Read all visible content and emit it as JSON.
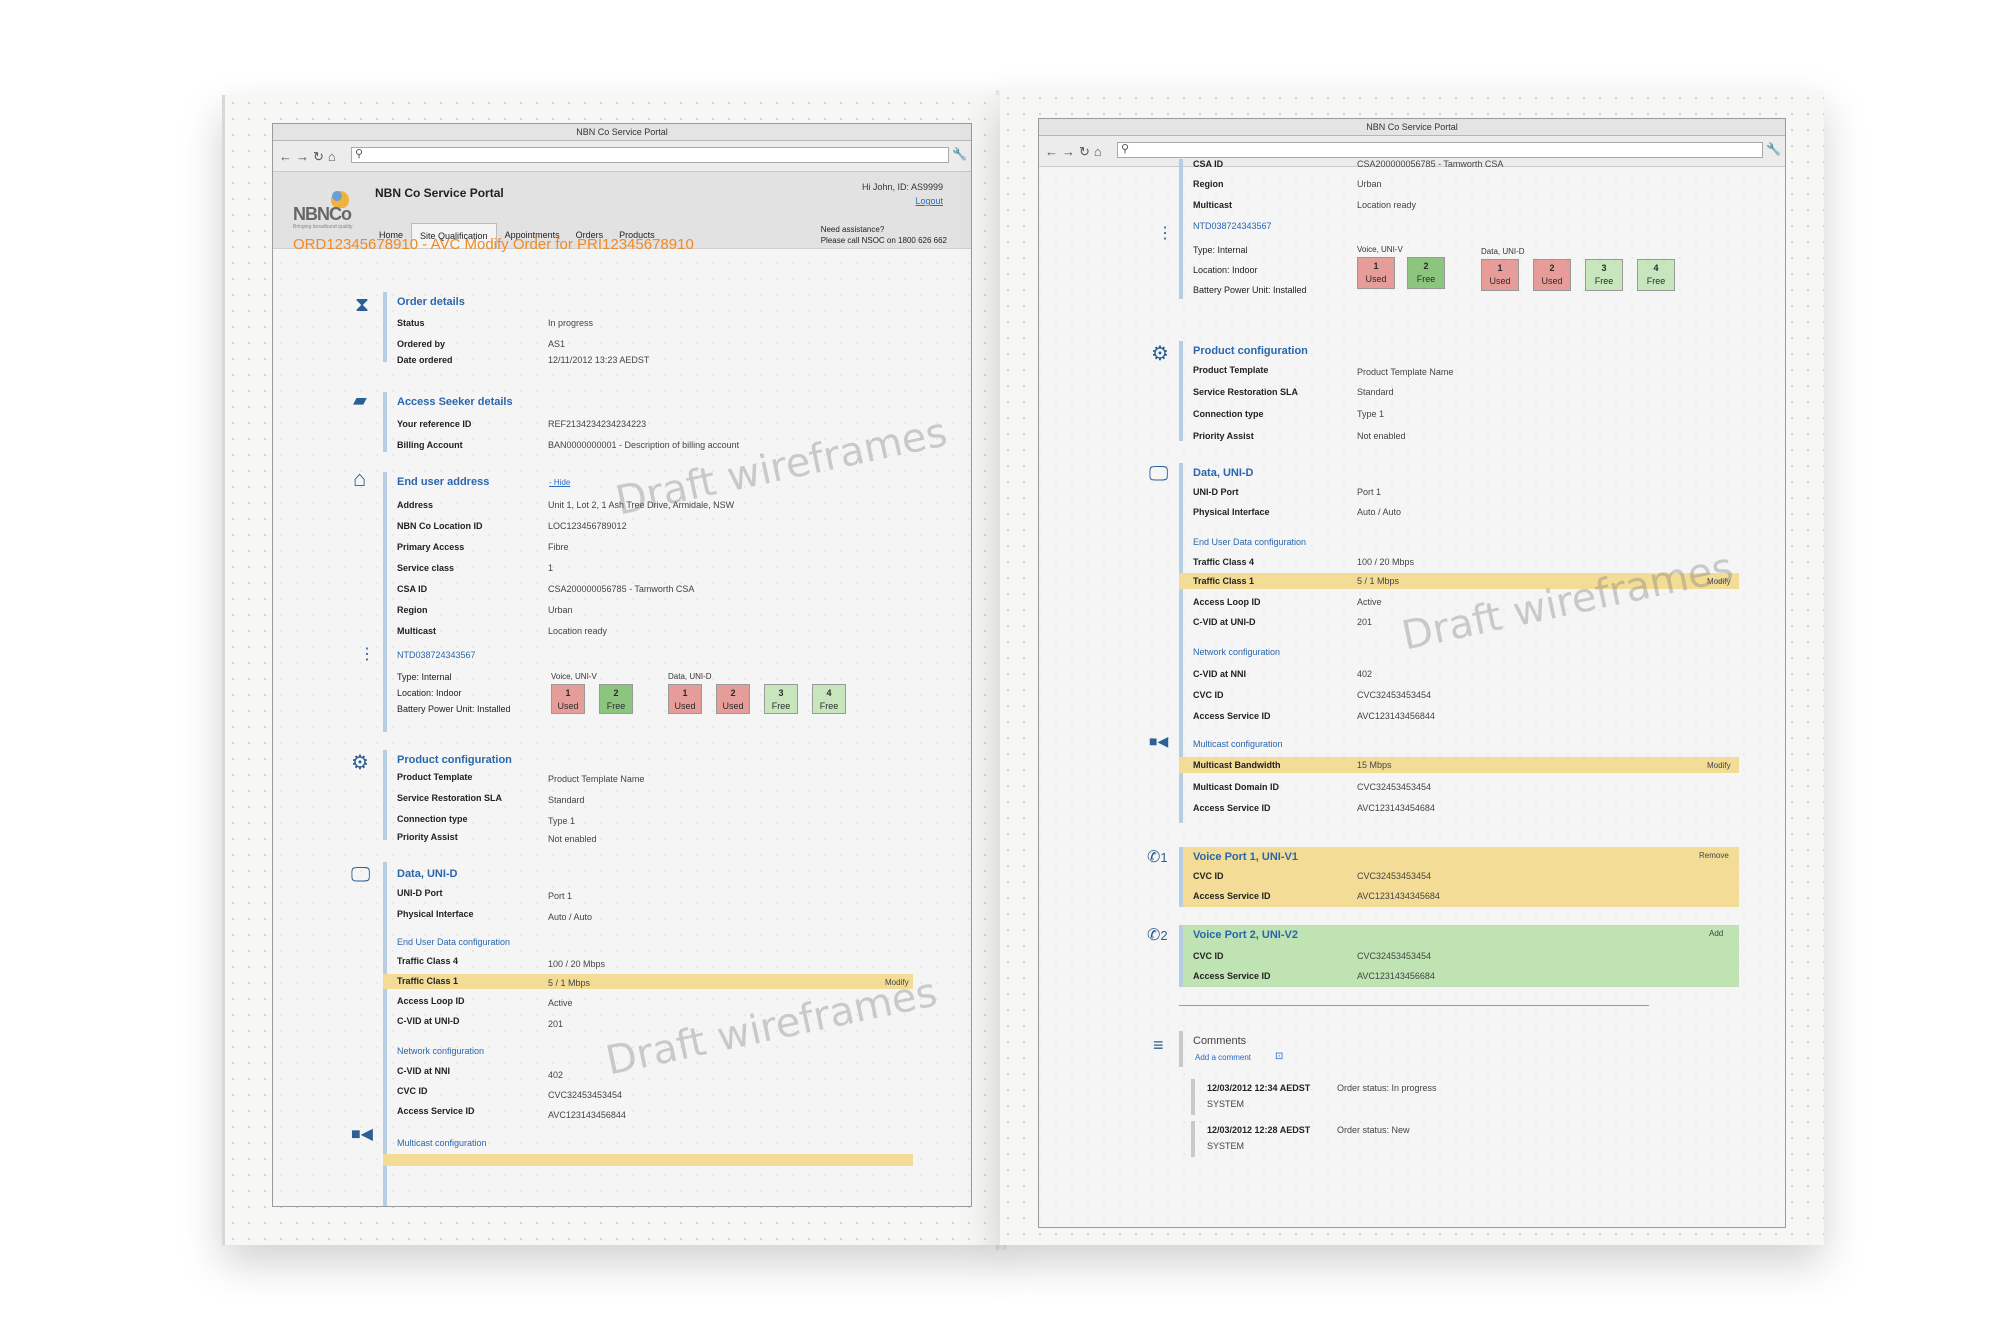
{
  "browser": {
    "window_title": "NBN Co Service Portal"
  },
  "app": {
    "logo_text": "NBNCo",
    "logo_tagline": "Bringing broadband quality",
    "portal_title": "NBN Co Service Portal",
    "user_greeting": "Hi John,  ID: AS9999",
    "logout": "Logout",
    "tabs": [
      "Home",
      "Site Qualification",
      "Appointments",
      "Orders",
      "Products"
    ]
  },
  "order": {
    "title": "ORD12345678910 - AVC Modify Order for PRI12345678910",
    "assist_line1": "Need assistance?",
    "assist_line2": "Please call NSOC on 1800 626 662"
  },
  "order_details": {
    "title": "Order details",
    "rows": [
      [
        "Status",
        "In progress"
      ],
      [
        "Ordered by",
        "AS1"
      ],
      [
        "Date ordered",
        "12/11/2012 13:23 AEDST"
      ]
    ]
  },
  "access_seeker": {
    "title": "Access Seeker details",
    "rows": [
      [
        "Your reference ID",
        "REF2134234234234223"
      ],
      [
        "Billing Account",
        "BAN0000000001 - Description of billing account"
      ]
    ]
  },
  "end_user_address": {
    "title": "End user address",
    "hide": "- Hide",
    "rows": [
      [
        "Address",
        "Unit 1, Lot 2, 1 Ash Tree Drive, Armidale, NSW"
      ],
      [
        "NBN Co Location ID",
        "LOC123456789012"
      ],
      [
        "Primary Access",
        "Fibre"
      ],
      [
        "Service class",
        "1"
      ],
      [
        "CSA ID",
        "CSA200000056785 - Tamworth CSA"
      ],
      [
        "Region",
        "Urban"
      ],
      [
        "Multicast",
        "Location ready"
      ]
    ]
  },
  "ntd": {
    "id": "NTD038724343567",
    "rows": [
      [
        "Type: Internal"
      ],
      [
        "Location: Indoor"
      ],
      [
        "Battery Power Unit: Installed"
      ]
    ],
    "voice_label": "Voice, UNI-V",
    "data_label": "Data, UNI-D",
    "voice_ports": [
      {
        "n": "1",
        "s": "Used"
      },
      {
        "n": "2",
        "s": "Free"
      }
    ],
    "data_ports": [
      {
        "n": "1",
        "s": "Used"
      },
      {
        "n": "2",
        "s": "Used"
      },
      {
        "n": "3",
        "s": "Free"
      },
      {
        "n": "4",
        "s": "Free"
      }
    ]
  },
  "product_config": {
    "title": "Product configuration",
    "rows": [
      [
        "Product Template",
        "Product Template Name"
      ],
      [
        "Service Restoration SLA",
        "Standard"
      ],
      [
        "Connection type",
        "Type 1"
      ],
      [
        "Priority Assist",
        "Not enabled"
      ]
    ]
  },
  "data_unid": {
    "title": "Data, UNI-D",
    "rows": [
      [
        "UNI-D Port",
        "Port 1"
      ],
      [
        "Physical Interface",
        "Auto / Auto"
      ]
    ],
    "eud_title": "End User Data configuration",
    "eud_rows": [
      [
        "Traffic Class 4",
        "100 / 20 Mbps"
      ],
      [
        "Traffic Class 1",
        "5 / 1 Mbps"
      ],
      [
        "Access Loop ID",
        "Active"
      ],
      [
        "C-VID at UNI-D",
        "201"
      ]
    ],
    "net_title": "Network configuration",
    "net_rows": [
      [
        "C-VID at NNI",
        "402"
      ],
      [
        "CVC ID",
        "CVC32453453454"
      ],
      [
        "Access Service ID",
        "AVC123143456844"
      ]
    ],
    "modify": "Modify"
  },
  "net_rows_right": [
    [
      "C-VID at NNI",
      "402"
    ],
    [
      "CVC ID",
      "CVC32453453454"
    ],
    [
      "Access Service ID",
      "AVC123143456844"
    ]
  ],
  "multicast": {
    "title": "Multicast configuration",
    "rows": [
      [
        "Multicast Bandwidth",
        "15 Mbps"
      ],
      [
        "Multicast Domain ID",
        "CVC32453453454"
      ],
      [
        "Access Service ID",
        "AVC123143454684"
      ]
    ],
    "modify": "Modify"
  },
  "voice1": {
    "title": "Voice Port 1, UNI-V1",
    "action": "Remove",
    "num": "1",
    "rows": [
      [
        "CVC ID",
        "CVC32453453454"
      ],
      [
        "Access Service ID",
        "AVC1231434345684"
      ]
    ]
  },
  "voice2": {
    "title": "Voice Port 2, UNI-V2",
    "action": "Add",
    "num": "2",
    "rows": [
      [
        "CVC ID",
        "CVC32453453454"
      ],
      [
        "Access Service ID",
        "AVC123143456684"
      ]
    ]
  },
  "comments": {
    "title": "Comments",
    "add": "Add a comment",
    "items": [
      {
        "time": "12/03/2012 12:34 AEDST",
        "who": "SYSTEM",
        "text": "Order status: In progress"
      },
      {
        "time": "12/03/2012 12:28 AEDST",
        "who": "SYSTEM",
        "text": "Order status: New"
      }
    ]
  },
  "watermark": "Draft wireframes",
  "colors": {
    "accent_orange": "#f08a24",
    "link_blue": "#2a66ad",
    "used_red": "#e69d9a",
    "free_green": "#8cc67e",
    "highlight_yellow": "#f3dc95",
    "highlight_green": "#bfe3b2"
  }
}
